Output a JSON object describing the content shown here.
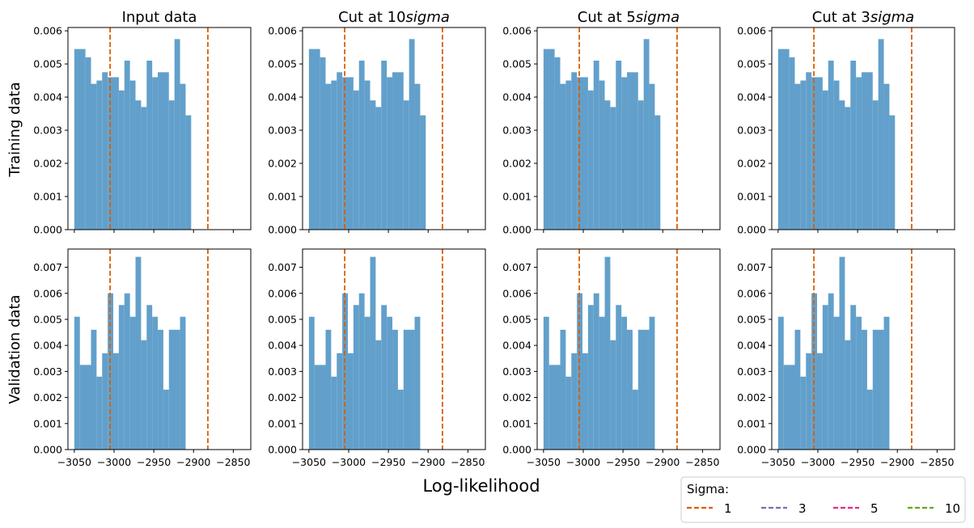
{
  "figure": {
    "col_titles": [
      {
        "text": "Input data",
        "suffix": ""
      },
      {
        "text": "Cut at 10",
        "suffix": "sigma"
      },
      {
        "text": "Cut at 5",
        "suffix": "sigma"
      },
      {
        "text": "Cut at 3",
        "suffix": "sigma"
      }
    ],
    "row_labels": [
      "Training data",
      "Validation data"
    ],
    "x_label": "Log-likelihood",
    "legend": {
      "title": "Sigma:",
      "entries": [
        {
          "label": "1",
          "color": "#d95f02"
        },
        {
          "label": "3",
          "color": "#7570b3"
        },
        {
          "label": "5",
          "color": "#e7298a"
        },
        {
          "label": "10",
          "color": "#66a61e"
        }
      ]
    },
    "bar_color": "#62a0cb",
    "cut_line_color": "#d95f02"
  },
  "chart_data": {
    "type": "bar",
    "chart_kind": "histogram-grid",
    "x_range": [
      -3058,
      -2828
    ],
    "x_ticks": [
      -3050,
      -3000,
      -2950,
      -2900,
      -2850
    ],
    "x_tick_labels": [
      "−3050",
      "−3000",
      "−2950",
      "−2900",
      "−2850"
    ],
    "bin_edges": [
      -3050,
      -3043,
      -3036,
      -3029,
      -3022,
      -3015,
      -3008,
      -3001,
      -2994,
      -2987,
      -2980,
      -2973,
      -2966,
      -2959,
      -2952,
      -2945,
      -2938,
      -2931,
      -2924,
      -2917,
      -2910,
      -2903,
      -2896,
      -2889,
      -2882,
      -2875,
      -2868,
      -2861,
      -2854,
      -2847,
      -2840,
      -2833
    ],
    "cut_lines_sigma1": [
      -3005,
      -2882
    ],
    "rows": [
      {
        "name": "Training data",
        "ylim": [
          0,
          0.0061
        ],
        "y_ticks": [
          0,
          0.001,
          0.002,
          0.003,
          0.004,
          0.005,
          0.006
        ],
        "y_tick_labels": [
          "0.000",
          "0.001",
          "0.002",
          "0.003",
          "0.004",
          "0.005",
          "0.006"
        ],
        "bins": [
          {
            "x0": -3050,
            "x1": -3036,
            "v": 0.00545
          },
          {
            "x0": -3036,
            "x1": -3029,
            "v": 0.0052
          },
          {
            "x0": -3029,
            "x1": -3022,
            "v": 0.0044
          },
          {
            "x0": -3022,
            "x1": -3015,
            "v": 0.0045
          },
          {
            "x0": -3015,
            "x1": -3008,
            "v": 0.00475
          },
          {
            "x0": -3008,
            "x1": -2994,
            "v": 0.0046
          },
          {
            "x0": -2994,
            "x1": -2987,
            "v": 0.0042
          },
          {
            "x0": -2987,
            "x1": -2980,
            "v": 0.0051
          },
          {
            "x0": -2980,
            "x1": -2973,
            "v": 0.0045
          },
          {
            "x0": -2973,
            "x1": -2966,
            "v": 0.0039
          },
          {
            "x0": -2966,
            "x1": -2959,
            "v": 0.0037
          },
          {
            "x0": -2959,
            "x1": -2952,
            "v": 0.0051
          },
          {
            "x0": -2952,
            "x1": -2945,
            "v": 0.0046
          },
          {
            "x0": -2945,
            "x1": -2931,
            "v": 0.00475
          },
          {
            "x0": -2931,
            "x1": -2924,
            "v": 0.0039
          },
          {
            "x0": -2924,
            "x1": -2917,
            "v": 0.00575
          },
          {
            "x0": -2917,
            "x1": -2910,
            "v": 0.0044
          },
          {
            "x0": -2910,
            "x1": -2903,
            "v": 0.00345
          }
        ]
      },
      {
        "name": "Validation data",
        "ylim": [
          0,
          0.0077
        ],
        "y_ticks": [
          0,
          0.001,
          0.002,
          0.003,
          0.004,
          0.005,
          0.006,
          0.007
        ],
        "y_tick_labels": [
          "0.000",
          "0.001",
          "0.002",
          "0.003",
          "0.004",
          "0.005",
          "0.006",
          "0.007"
        ],
        "bins": [
          {
            "x0": -3050,
            "x1": -3043,
            "v": 0.0051
          },
          {
            "x0": -3043,
            "x1": -3029,
            "v": 0.00325
          },
          {
            "x0": -3029,
            "x1": -3022,
            "v": 0.0046
          },
          {
            "x0": -3022,
            "x1": -3015,
            "v": 0.0028
          },
          {
            "x0": -3015,
            "x1": -3008,
            "v": 0.0037
          },
          {
            "x0": -3008,
            "x1": -3001,
            "v": 0.006
          },
          {
            "x0": -3001,
            "x1": -2994,
            "v": 0.0037
          },
          {
            "x0": -2994,
            "x1": -2987,
            "v": 0.00555
          },
          {
            "x0": -2987,
            "x1": -2980,
            "v": 0.006
          },
          {
            "x0": -2980,
            "x1": -2973,
            "v": 0.0051
          },
          {
            "x0": -2973,
            "x1": -2966,
            "v": 0.0074
          },
          {
            "x0": -2966,
            "x1": -2959,
            "v": 0.0042
          },
          {
            "x0": -2959,
            "x1": -2952,
            "v": 0.00555
          },
          {
            "x0": -2952,
            "x1": -2945,
            "v": 0.0051
          },
          {
            "x0": -2945,
            "x1": -2938,
            "v": 0.0046
          },
          {
            "x0": -2938,
            "x1": -2931,
            "v": 0.0023
          },
          {
            "x0": -2931,
            "x1": -2917,
            "v": 0.0046
          },
          {
            "x0": -2917,
            "x1": -2910,
            "v": 0.0051
          }
        ]
      }
    ]
  }
}
